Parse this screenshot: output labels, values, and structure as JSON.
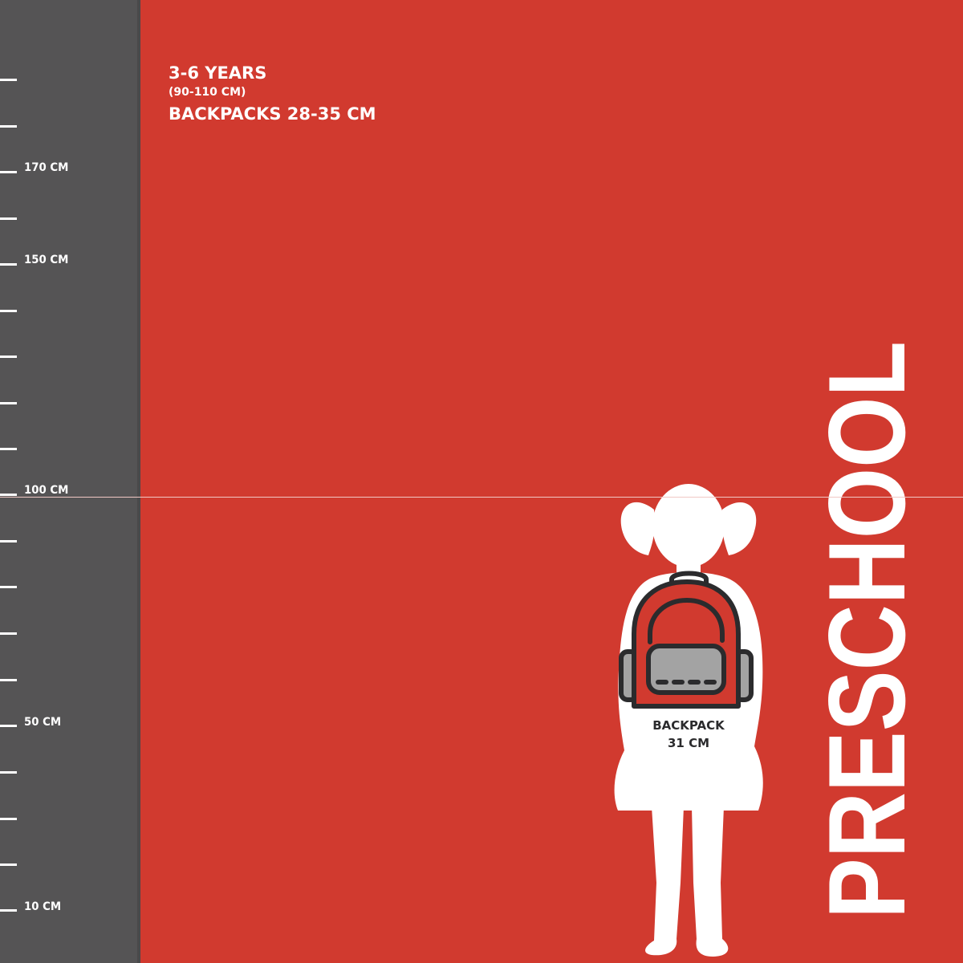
{
  "ruler": {
    "ticks_count": 19,
    "labels": [
      {
        "text": "170 CM",
        "value": 170
      },
      {
        "text": "150 CM",
        "value": 150
      },
      {
        "text": "100 CM",
        "value": 100
      },
      {
        "text": "50 CM",
        "value": 50
      },
      {
        "text": "10 CM",
        "value": 10
      }
    ]
  },
  "info": {
    "age": "3-6 YEARS",
    "height_range": "(90-110 CM)",
    "backpack_range": "BACKPACKS 28-35 CM"
  },
  "category": "PRESCHOOL",
  "backpack": {
    "label": "BACKPACK",
    "size": "31 CM"
  },
  "colors": {
    "background": "#d13a2f",
    "ruler": "#555455",
    "text": "#ffffff",
    "backpack_outline": "#2b2b2d",
    "backpack_pocket": "#a3a3a3"
  }
}
